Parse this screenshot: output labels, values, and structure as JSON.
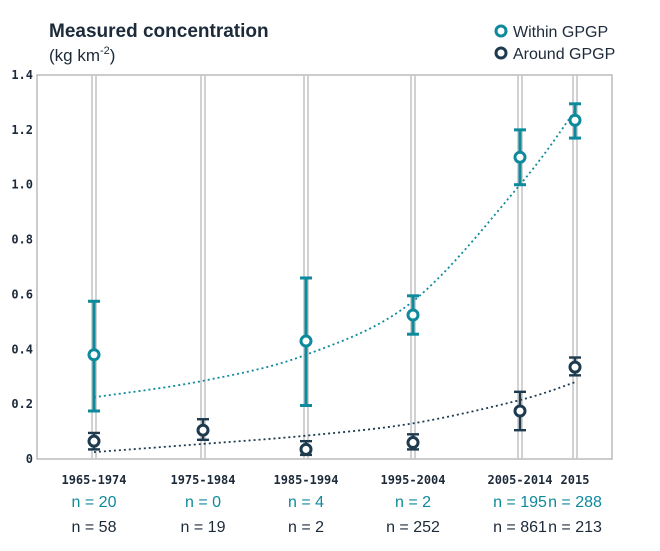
{
  "chart_data": {
    "type": "scatter",
    "title": "Measured concentration",
    "unit_base": "(kg km",
    "unit_sup": "-2",
    "unit_close": ")",
    "ylim": [
      0,
      1.4
    ],
    "yticks": [
      "0",
      "0.2",
      "0.4",
      "0.6",
      "0.8",
      "1.0",
      "1.2",
      "1.4"
    ],
    "categories": [
      "1965-1974",
      "1975-1984",
      "1985-1994",
      "1995-2004",
      "2005-2014",
      "2015"
    ],
    "grid": "vertical",
    "legend_position": "top-right",
    "series": [
      {
        "name": "Within GPGP",
        "color": "#0d8a9b",
        "points": [
          {
            "category": "1965-1974",
            "y": 0.38,
            "low": 0.175,
            "high": 0.575
          },
          {
            "category": "1985-1994",
            "y": 0.43,
            "low": 0.195,
            "high": 0.66
          },
          {
            "category": "1995-2004",
            "y": 0.525,
            "low": 0.455,
            "high": 0.595
          },
          {
            "category": "2005-2014",
            "y": 1.1,
            "low": 1.0,
            "high": 1.2
          },
          {
            "category": "2015",
            "y": 1.235,
            "low": 1.17,
            "high": 1.295
          }
        ],
        "trend": [
          {
            "category": "1965-1974",
            "y": 0.225
          },
          {
            "category": "1975-1984",
            "y": 0.285
          },
          {
            "category": "1985-1994",
            "y": 0.38
          },
          {
            "category": "1995-2004",
            "y": 0.575
          },
          {
            "category": "2005-2014",
            "y": 1.0
          },
          {
            "category": "2015",
            "y": 1.27
          }
        ],
        "sample_sizes": [
          "n = 20",
          "n = 0",
          "n = 4",
          "n = 2",
          "n = 195",
          "n = 288"
        ]
      },
      {
        "name": "Around GPGP",
        "color": "#1e3a4e",
        "points": [
          {
            "category": "1965-1974",
            "y": 0.065,
            "low": 0.035,
            "high": 0.095
          },
          {
            "category": "1975-1984",
            "y": 0.105,
            "low": 0.07,
            "high": 0.145
          },
          {
            "category": "1985-1994",
            "y": 0.035,
            "low": 0.015,
            "high": 0.065
          },
          {
            "category": "1995-2004",
            "y": 0.06,
            "low": 0.035,
            "high": 0.09
          },
          {
            "category": "2005-2014",
            "y": 0.175,
            "low": 0.105,
            "high": 0.245
          },
          {
            "category": "2015",
            "y": 0.335,
            "low": 0.305,
            "high": 0.37
          }
        ],
        "trend": [
          {
            "category": "1965-1974",
            "y": 0.025
          },
          {
            "category": "1975-1984",
            "y": 0.055
          },
          {
            "category": "1985-1994",
            "y": 0.085
          },
          {
            "category": "1995-2004",
            "y": 0.13
          },
          {
            "category": "2005-2014",
            "y": 0.215
          },
          {
            "category": "2015",
            "y": 0.28
          }
        ],
        "sample_sizes": [
          "n = 58",
          "n = 19",
          "n = 2",
          "n = 252",
          "n = 861",
          "n = 213"
        ]
      }
    ]
  }
}
